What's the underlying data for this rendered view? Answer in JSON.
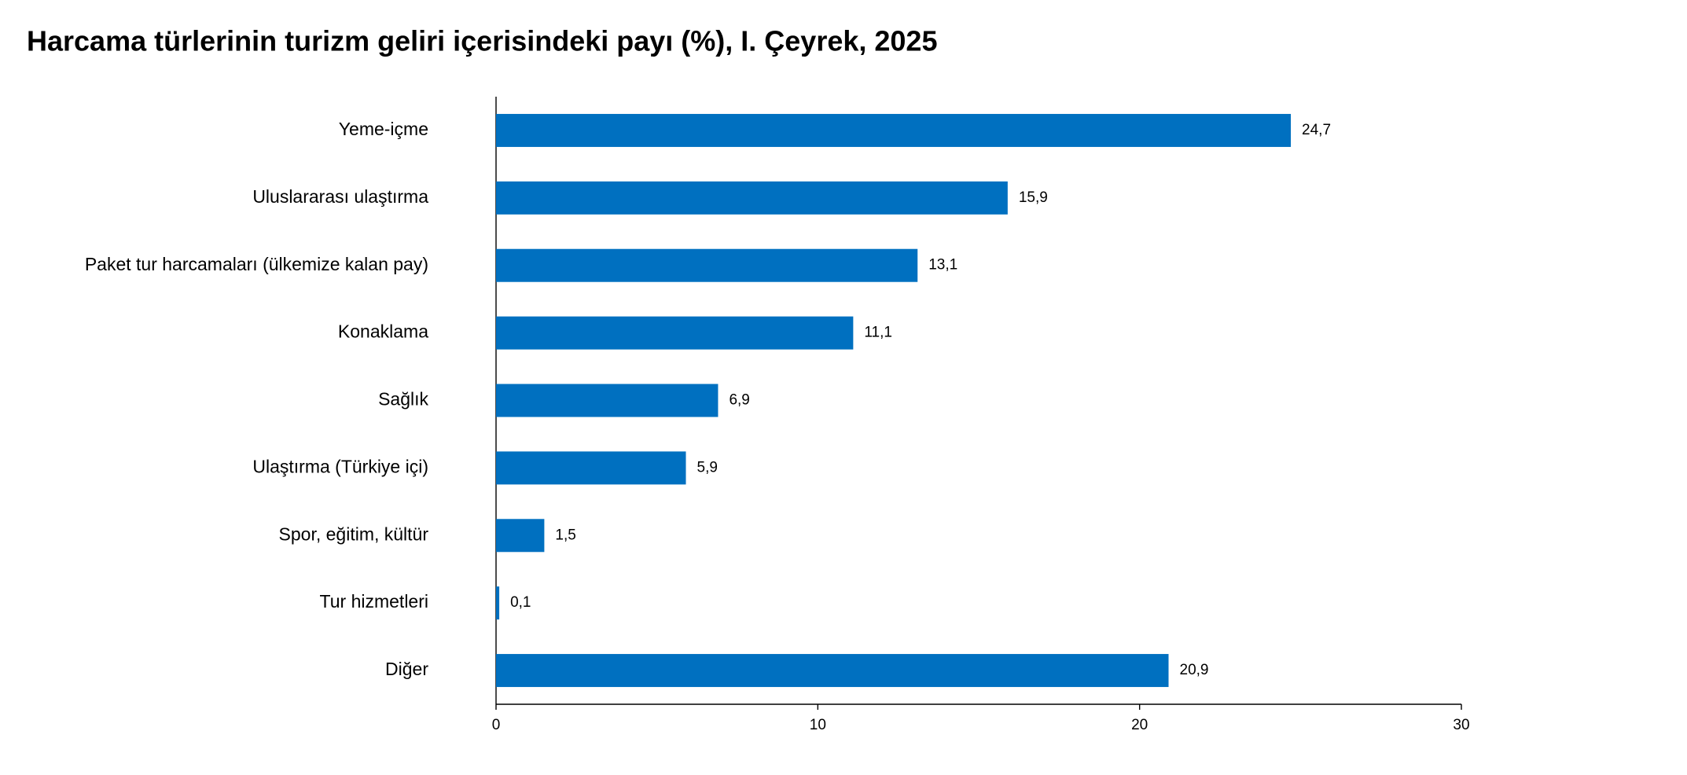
{
  "chart_data": {
    "type": "bar",
    "orientation": "horizontal",
    "title": "Harcama türlerinin turizm geliri içerisindeki payı (%), I. Çeyrek, 2025",
    "categories": [
      "Yeme-içme",
      "Uluslararası ulaştırma",
      "Paket tur harcamaları (ülkemize kalan pay)",
      "Konaklama",
      "Sağlık",
      "Ulaştırma (Türkiye içi)",
      "Spor, eğitim, kültür",
      "Tur hizmetleri",
      "Diğer"
    ],
    "values": [
      24.7,
      15.9,
      13.1,
      11.1,
      6.9,
      5.9,
      1.5,
      0.1,
      20.9
    ],
    "value_labels": [
      "24,7",
      "15,9",
      "13,1",
      "11,1",
      "6,9",
      "5,9",
      "1,5",
      "0,1",
      "20,9"
    ],
    "color": "#0070c0",
    "xlim": [
      0,
      30
    ],
    "xticks": [
      0,
      10,
      20,
      30
    ],
    "grid": false
  }
}
